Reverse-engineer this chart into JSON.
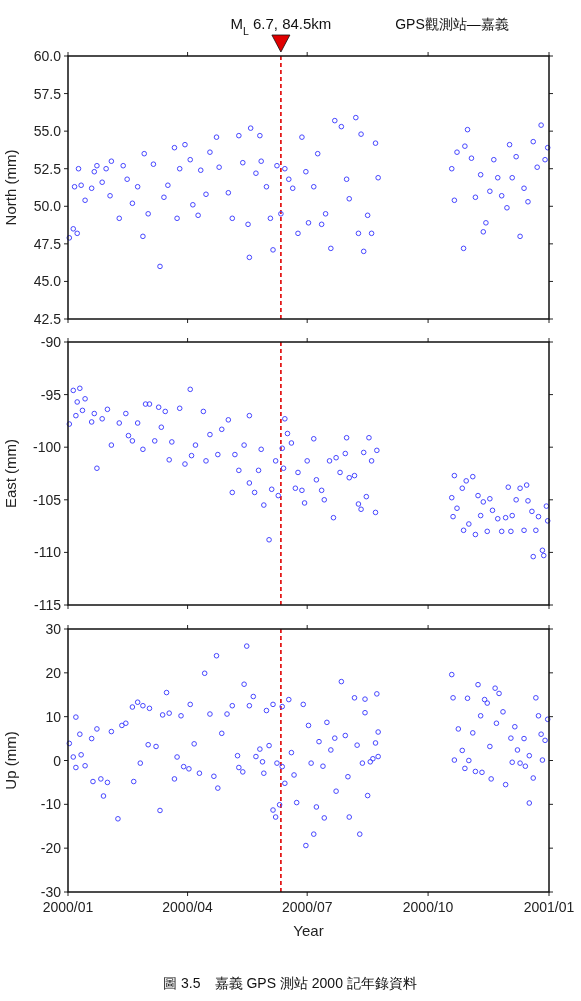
{
  "chart_data": [
    {
      "type": "scatter",
      "title": "GPS觀測站—嘉義",
      "ylabel": "North (mm)",
      "marker": "circle",
      "tick_labels": "y",
      "xlim": [
        "2000-01-01",
        "2001-01-01"
      ],
      "xticks": [
        {
          "value": "2000-01-01",
          "label": null
        },
        {
          "value": "2000-04-01",
          "label": null
        },
        {
          "value": "2000-07-01",
          "label": null
        },
        {
          "value": "2000-10-01",
          "label": null
        },
        {
          "value": "2001-01-01",
          "label": null
        }
      ],
      "ylim": [
        42.5,
        60.0
      ],
      "yticks": [
        {
          "value": 42.5,
          "label": "42.5"
        },
        {
          "value": 45,
          "label": "45.0"
        },
        {
          "value": 47.5,
          "label": "47.5"
        },
        {
          "value": 50,
          "label": "50.0"
        },
        {
          "value": 52.5,
          "label": "52.5"
        },
        {
          "value": 55,
          "label": "55.0"
        },
        {
          "value": 57.5,
          "label": "57.5"
        },
        {
          "value": 60,
          "label": "60.0"
        }
      ],
      "ref_lines": [
        {
          "axis": "x",
          "value": "2000-06-11",
          "label": "M$_{L}$ 6.7, 84.5km",
          "color": "#e00000",
          "line_style": "dashed"
        }
      ],
      "series": [
        {
          "color": "#4646ff",
          "x": [
            "2000-01-02",
            "2000-01-05",
            "2000-01-06",
            "2000-01-08",
            "2000-01-09",
            "2000-01-11",
            "2000-01-14",
            "2000-01-19",
            "2000-01-21",
            "2000-01-23",
            "2000-01-27",
            "2000-01-30",
            "2000-02-02",
            "2000-02-03",
            "2000-02-09",
            "2000-02-12",
            "2000-02-15",
            "2000-02-19",
            "2000-02-23",
            "2000-02-27",
            "2000-02-28",
            "2000-03-02",
            "2000-03-06",
            "2000-03-11",
            "2000-03-14",
            "2000-03-17",
            "2000-03-22",
            "2000-03-24",
            "2000-03-26",
            "2000-03-30",
            "2000-04-03",
            "2000-04-05",
            "2000-04-09",
            "2000-04-11",
            "2000-04-15",
            "2000-04-18",
            "2000-04-23",
            "2000-04-25",
            "2000-05-02",
            "2000-05-05",
            "2000-05-10",
            "2000-05-13",
            "2000-05-17",
            "2000-05-18",
            "2000-05-19",
            "2000-05-23",
            "2000-05-26",
            "2000-05-27",
            "2000-05-31",
            "2000-06-03",
            "2000-06-05",
            "2000-06-08",
            "2000-06-11",
            "2000-06-14",
            "2000-06-17",
            "2000-06-20",
            "2000-06-24",
            "2000-06-27",
            "2000-06-30",
            "2000-07-02",
            "2000-07-06",
            "2000-07-09",
            "2000-07-12",
            "2000-07-15",
            "2000-07-19",
            "2000-07-22",
            "2000-07-27",
            "2000-07-31",
            "2000-08-02",
            "2000-08-07",
            "2000-08-09",
            "2000-08-11",
            "2000-08-13",
            "2000-08-16",
            "2000-08-19",
            "2000-08-22",
            "2000-08-24",
            "2000-10-19",
            "2000-10-21",
            "2000-10-23",
            "2000-10-28",
            "2000-10-29",
            "2000-10-31",
            "2000-11-03",
            "2000-11-06",
            "2000-11-10",
            "2000-11-12",
            "2000-11-14",
            "2000-11-17",
            "2000-11-20",
            "2000-11-23",
            "2000-11-26",
            "2000-11-30",
            "2000-12-02",
            "2000-12-04",
            "2000-12-07",
            "2000-12-10",
            "2000-12-13",
            "2000-12-16",
            "2000-12-20",
            "2000-12-23",
            "2000-12-26",
            "2000-12-29",
            "2000-12-31"
          ],
          "values": [
            47.9,
            48.5,
            51.3,
            48.2,
            52.5,
            51.4,
            50.4,
            51.2,
            52.3,
            52.7,
            51.6,
            52.5,
            50.7,
            53.0,
            49.2,
            52.7,
            51.8,
            50.2,
            51.3,
            48.0,
            53.5,
            49.5,
            52.8,
            46.0,
            50.6,
            51.4,
            53.9,
            49.2,
            52.5,
            54.1,
            53.1,
            50.1,
            49.4,
            52.4,
            50.8,
            53.6,
            54.6,
            52.6,
            50.9,
            49.2,
            54.7,
            52.9,
            48.8,
            46.6,
            55.2,
            52.2,
            54.7,
            53.0,
            51.3,
            49.2,
            47.1,
            52.7,
            49.5,
            52.5,
            51.8,
            51.2,
            48.2,
            54.6,
            52.3,
            48.9,
            51.3,
            53.5,
            48.8,
            49.5,
            47.2,
            55.7,
            55.3,
            51.8,
            50.5,
            55.9,
            48.2,
            54.8,
            47.0,
            49.4,
            48.2,
            54.2,
            51.9,
            52.5,
            50.4,
            53.6,
            47.2,
            54.0,
            55.1,
            53.2,
            50.6,
            52.1,
            48.3,
            48.9,
            51.0,
            53.1,
            51.9,
            50.7,
            49.9,
            54.1,
            51.9,
            53.3,
            48.0,
            51.2,
            50.3,
            54.3,
            52.6,
            55.4,
            53.1,
            53.9
          ]
        }
      ]
    },
    {
      "type": "scatter",
      "ylabel": "East (mm)",
      "marker": "circle",
      "tick_labels": "y",
      "xlim": [
        "2000-01-01",
        "2001-01-01"
      ],
      "xticks": [
        {
          "value": "2000-01-01",
          "label": null
        },
        {
          "value": "2000-04-01",
          "label": null
        },
        {
          "value": "2000-07-01",
          "label": null
        },
        {
          "value": "2000-10-01",
          "label": null
        },
        {
          "value": "2001-01-01",
          "label": null
        }
      ],
      "ylim": [
        -115,
        -90
      ],
      "yticks": [
        -115,
        -110,
        -105,
        -100,
        -95,
        -90
      ],
      "ref_lines": [
        {
          "axis": "x",
          "value": "2000-06-11",
          "color": "#e00000",
          "line_style": "dashed"
        }
      ],
      "series": [
        {
          "color": "#4646ff",
          "x": [
            "2000-01-02",
            "2000-01-05",
            "2000-01-07",
            "2000-01-08",
            "2000-01-10",
            "2000-01-12",
            "2000-01-14",
            "2000-01-19",
            "2000-01-21",
            "2000-01-23",
            "2000-01-27",
            "2000-01-31",
            "2000-02-03",
            "2000-02-09",
            "2000-02-14",
            "2000-02-16",
            "2000-02-19",
            "2000-02-23",
            "2000-02-27",
            "2000-02-29",
            "2000-03-03",
            "2000-03-07",
            "2000-03-10",
            "2000-03-12",
            "2000-03-15",
            "2000-03-18",
            "2000-03-20",
            "2000-03-26",
            "2000-03-30",
            "2000-04-03",
            "2000-04-04",
            "2000-04-07",
            "2000-04-13",
            "2000-04-15",
            "2000-04-18",
            "2000-04-24",
            "2000-04-27",
            "2000-05-02",
            "2000-05-05",
            "2000-05-07",
            "2000-05-10",
            "2000-05-14",
            "2000-05-18",
            "2000-05-18",
            "2000-05-22",
            "2000-05-25",
            "2000-05-27",
            "2000-05-29",
            "2000-06-02",
            "2000-06-04",
            "2000-06-07",
            "2000-06-09",
            "2000-06-12",
            "2000-06-13",
            "2000-06-14",
            "2000-06-16",
            "2000-06-19",
            "2000-06-22",
            "2000-06-24",
            "2000-06-27",
            "2000-06-29",
            "2000-07-01",
            "2000-07-06",
            "2000-07-08",
            "2000-07-12",
            "2000-07-14",
            "2000-07-18",
            "2000-07-21",
            "2000-07-23",
            "2000-07-26",
            "2000-07-30",
            "2000-07-31",
            "2000-08-02",
            "2000-08-06",
            "2000-08-09",
            "2000-08-11",
            "2000-08-13",
            "2000-08-15",
            "2000-08-17",
            "2000-08-19",
            "2000-08-22",
            "2000-08-23",
            "2000-10-19",
            "2000-10-20",
            "2000-10-21",
            "2000-10-23",
            "2000-10-27",
            "2000-10-28",
            "2000-10-30",
            "2000-11-01",
            "2000-11-04",
            "2000-11-06",
            "2000-11-08",
            "2000-11-10",
            "2000-11-12",
            "2000-11-15",
            "2000-11-17",
            "2000-11-19",
            "2000-11-23",
            "2000-11-26",
            "2000-11-29",
            "2000-12-01",
            "2000-12-03",
            "2000-12-04",
            "2000-12-07",
            "2000-12-10",
            "2000-12-13",
            "2000-12-15",
            "2000-12-16",
            "2000-12-19",
            "2000-12-20",
            "2000-12-22",
            "2000-12-24",
            "2000-12-27",
            "2000-12-28",
            "2000-12-30",
            "2000-12-31"
          ],
          "values": [
            -97.8,
            -94.6,
            -97.0,
            -95.7,
            -94.4,
            -96.5,
            -95.4,
            -97.6,
            -96.8,
            -102.0,
            -97.3,
            -96.4,
            -99.8,
            -97.7,
            -96.8,
            -98.9,
            -99.4,
            -97.7,
            -100.2,
            -95.9,
            -95.9,
            -99.4,
            -96.2,
            -98.1,
            -96.6,
            -101.2,
            -99.5,
            -96.3,
            -101.6,
            -94.5,
            -100.8,
            -99.8,
            -96.6,
            -101.3,
            -98.8,
            -100.7,
            -98.3,
            -97.4,
            -104.3,
            -100.7,
            -102.2,
            -99.8,
            -97.0,
            -103.4,
            -104.3,
            -102.2,
            -100.2,
            -105.5,
            -108.8,
            -104.0,
            -101.3,
            -104.6,
            -100.1,
            -102.0,
            -97.3,
            -98.7,
            -99.6,
            -103.9,
            -102.4,
            -104.1,
            -105.3,
            -101.3,
            -99.2,
            -103.1,
            -104.1,
            -105.0,
            -101.3,
            -106.7,
            -101.0,
            -102.4,
            -100.6,
            -99.1,
            -102.9,
            -102.7,
            -105.4,
            -105.9,
            -100.5,
            -104.7,
            -99.1,
            -101.3,
            -106.2,
            -100.3,
            -104.8,
            -106.6,
            -102.7,
            -105.8,
            -103.9,
            -107.9,
            -103.2,
            -107.3,
            -102.8,
            -108.3,
            -104.6,
            -106.5,
            -105.2,
            -108.0,
            -104.9,
            -106.0,
            -106.8,
            -108.0,
            -106.7,
            -103.8,
            -108.0,
            -106.5,
            -105.0,
            -103.9,
            -107.9,
            -103.6,
            -105.1,
            -106.1,
            -110.4,
            -107.9,
            -106.6,
            -109.8,
            -110.3,
            -105.6,
            -107.0
          ]
        }
      ]
    },
    {
      "type": "scatter",
      "ylabel": "Up (mm)",
      "xlabel": "Year",
      "marker": "circle",
      "annotations": [
        "圖 3.5　嘉義 GPS 測站 2000 記年錄資料"
      ],
      "xlim": [
        "2000-01-01",
        "2001-01-01"
      ],
      "xticks": [
        {
          "value": "2000-01-01",
          "label": "2000/01"
        },
        {
          "value": "2000-04-01",
          "label": "2000/04"
        },
        {
          "value": "2000-07-01",
          "label": "2000/07"
        },
        {
          "value": "2000-10-01",
          "label": "2000/10"
        },
        {
          "value": "2001-01-01",
          "label": "2001/01"
        }
      ],
      "ylim": [
        -30,
        30
      ],
      "yticks": [
        -30,
        -20,
        -10,
        0,
        10,
        20,
        30
      ],
      "ref_lines": [
        {
          "axis": "x",
          "value": "2000-06-11",
          "color": "#e00000",
          "line_style": "dashed"
        }
      ],
      "series": [
        {
          "color": "#4646ff",
          "x": [
            "2000-01-02",
            "2000-01-05",
            "2000-01-07",
            "2000-01-07",
            "2000-01-10",
            "2000-01-11",
            "2000-01-14",
            "2000-01-19",
            "2000-01-20",
            "2000-01-23",
            "2000-01-26",
            "2000-01-28",
            "2000-01-31",
            "2000-02-03",
            "2000-02-08",
            "2000-02-11",
            "2000-02-14",
            "2000-02-19",
            "2000-02-20",
            "2000-02-23",
            "2000-02-25",
            "2000-02-27",
            "2000-03-02",
            "2000-03-03",
            "2000-03-08",
            "2000-03-11",
            "2000-03-13",
            "2000-03-16",
            "2000-03-18",
            "2000-03-22",
            "2000-03-24",
            "2000-03-27",
            "2000-03-29",
            "2000-04-02",
            "2000-04-03",
            "2000-04-06",
            "2000-04-10",
            "2000-04-14",
            "2000-04-18",
            "2000-04-21",
            "2000-04-23",
            "2000-04-24",
            "2000-04-27",
            "2000-05-01",
            "2000-05-05",
            "2000-05-09",
            "2000-05-10",
            "2000-05-13",
            "2000-05-14",
            "2000-05-16",
            "2000-05-18",
            "2000-05-21",
            "2000-05-23",
            "2000-05-26",
            "2000-05-28",
            "2000-05-29",
            "2000-05-31",
            "2000-06-02",
            "2000-06-05",
            "2000-06-05",
            "2000-06-07",
            "2000-06-08",
            "2000-06-10",
            "2000-06-12",
            "2000-06-12",
            "2000-06-14",
            "2000-06-17",
            "2000-06-19",
            "2000-06-21",
            "2000-06-23",
            "2000-06-28",
            "2000-06-30",
            "2000-07-02",
            "2000-07-04",
            "2000-07-06",
            "2000-07-08",
            "2000-07-10",
            "2000-07-13",
            "2000-07-14",
            "2000-07-16",
            "2000-07-19",
            "2000-07-22",
            "2000-07-23",
            "2000-07-27",
            "2000-07-30",
            "2000-08-01",
            "2000-08-02",
            "2000-08-06",
            "2000-08-08",
            "2000-08-10",
            "2000-08-12",
            "2000-08-14",
            "2000-08-14",
            "2000-08-16",
            "2000-08-18",
            "2000-08-20",
            "2000-08-22",
            "2000-08-23",
            "2000-08-24",
            "2000-08-24",
            "2000-10-19",
            "2000-10-20",
            "2000-10-21",
            "2000-10-24",
            "2000-10-27",
            "2000-10-29",
            "2000-10-31",
            "2000-11-01",
            "2000-11-04",
            "2000-11-06",
            "2000-11-08",
            "2000-11-10",
            "2000-11-11",
            "2000-11-13",
            "2000-11-15",
            "2000-11-17",
            "2000-11-18",
            "2000-11-21",
            "2000-11-22",
            "2000-11-24",
            "2000-11-27",
            "2000-11-29",
            "2000-12-03",
            "2000-12-04",
            "2000-12-06",
            "2000-12-08",
            "2000-12-10",
            "2000-12-13",
            "2000-12-14",
            "2000-12-17",
            "2000-12-17",
            "2000-12-20",
            "2000-12-22",
            "2000-12-24",
            "2000-12-26",
            "2000-12-27",
            "2000-12-29",
            "2000-12-31"
          ],
          "values": [
            3.9,
            0.8,
            9.9,
            -1.6,
            6.0,
            1.3,
            -1.2,
            5.0,
            -4.8,
            7.2,
            -4.2,
            -8.1,
            -5.0,
            6.6,
            -13.3,
            8.0,
            8.5,
            12.2,
            -4.8,
            13.3,
            -0.6,
            12.5,
            3.6,
            11.9,
            3.2,
            -11.4,
            10.4,
            15.5,
            10.8,
            -4.2,
            0.8,
            10.2,
            -1.4,
            -1.9,
            12.8,
            3.8,
            -2.9,
            19.9,
            10.6,
            -3.6,
            23.9,
            -6.3,
            6.2,
            10.6,
            12.5,
            1.1,
            -1.6,
            -2.6,
            17.4,
            26.1,
            12.5,
            14.6,
            0.9,
            2.6,
            -0.3,
            -2.9,
            11.4,
            3.4,
            12.8,
            -11.3,
            -12.9,
            -0.6,
            -10.1,
            -1.4,
            12.3,
            -5.2,
            13.9,
            1.8,
            -3.3,
            -9.6,
            12.8,
            -19.4,
            8.0,
            -0.6,
            -16.8,
            -10.6,
            4.3,
            -1.3,
            -13.1,
            8.7,
            2.4,
            5.1,
            -7.0,
            18.0,
            5.7,
            -3.7,
            -12.9,
            14.3,
            3.5,
            -16.8,
            -0.6,
            10.9,
            14.0,
            -8.0,
            -0.3,
            0.4,
            4.0,
            15.2,
            6.5,
            0.9,
            19.6,
            14.3,
            0.1,
            7.2,
            2.3,
            -1.8,
            14.2,
            0.0,
            6.3,
            -2.5,
            17.3,
            10.2,
            -2.7,
            13.9,
            13.1,
            3.2,
            -4.2,
            16.5,
            8.5,
            15.3,
            11.1,
            -5.5,
            5.1,
            -0.4,
            7.7,
            2.4,
            -0.6,
            5.0,
            -1.3,
            1.1,
            -9.7,
            -4.0,
            14.3,
            10.2,
            6.0,
            0.1,
            4.6,
            9.4
          ]
        }
      ]
    }
  ]
}
